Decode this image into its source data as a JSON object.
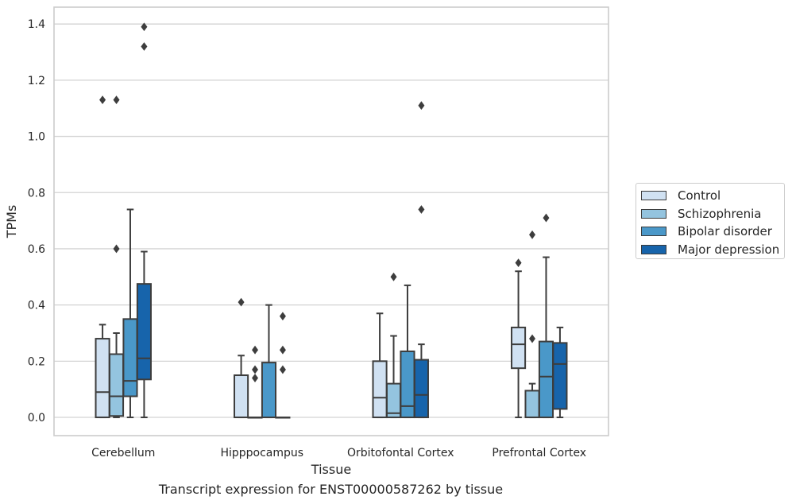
{
  "caption": "Transcript expression for ENST00000587262 by tissue",
  "legend": {
    "items": [
      {
        "label": "Control",
        "color": "#d0e1f2"
      },
      {
        "label": "Schizophrenia",
        "color": "#94c4df"
      },
      {
        "label": "Bipolar disorder",
        "color": "#4a98c9"
      },
      {
        "label": "Major depression",
        "color": "#1764ab"
      }
    ]
  },
  "chart_data": {
    "type": "box",
    "xlabel": "Tissue",
    "ylabel": "TPMs",
    "ylim": [
      -0.065,
      1.46
    ],
    "yticks": [
      "0.0",
      "0.2",
      "0.4",
      "0.6",
      "0.8",
      "1.0",
      "1.2",
      "1.4"
    ],
    "grid": "horizontal",
    "legend_position": "right",
    "categories": [
      "Cerebellum",
      "Hipppocampus",
      "Orbitofontal Cortex",
      "Prefrontal Cortex"
    ],
    "series": [
      {
        "name": "Control",
        "color": "#d0e1f2",
        "boxes": [
          {
            "min": 0.0,
            "q1": 0.0,
            "median": 0.09,
            "q3": 0.28,
            "max": 0.33,
            "outliers": [
              1.13
            ]
          },
          {
            "min": 0.0,
            "q1": 0.0,
            "median": 0.0,
            "q3": 0.15,
            "max": 0.22,
            "outliers": [
              0.41
            ]
          },
          {
            "min": 0.0,
            "q1": 0.0,
            "median": 0.07,
            "q3": 0.2,
            "max": 0.37,
            "outliers": []
          },
          {
            "min": 0.0,
            "q1": 0.175,
            "median": 0.26,
            "q3": 0.32,
            "max": 0.52,
            "outliers": [
              0.55
            ]
          }
        ]
      },
      {
        "name": "Schizophrenia",
        "color": "#94c4df",
        "boxes": [
          {
            "min": 0.0,
            "q1": 0.005,
            "median": 0.075,
            "q3": 0.225,
            "max": 0.3,
            "outliers": [
              1.13,
              0.6
            ]
          },
          {
            "min": 0.0,
            "q1": 0.0,
            "median": 0.0,
            "q3": 0.0,
            "max": 0.0,
            "outliers": [
              0.24,
              0.17,
              0.14
            ]
          },
          {
            "min": 0.0,
            "q1": 0.0,
            "median": 0.015,
            "q3": 0.12,
            "max": 0.29,
            "outliers": [
              0.5
            ]
          },
          {
            "min": 0.0,
            "q1": 0.0,
            "median": 0.0,
            "q3": 0.095,
            "max": 0.12,
            "outliers": [
              0.65,
              0.28
            ]
          }
        ]
      },
      {
        "name": "Bipolar disorder",
        "color": "#4a98c9",
        "boxes": [
          {
            "min": 0.0,
            "q1": 0.075,
            "median": 0.13,
            "q3": 0.35,
            "max": 0.74,
            "outliers": []
          },
          {
            "min": 0.0,
            "q1": 0.0,
            "median": 0.0,
            "q3": 0.195,
            "max": 0.4,
            "outliers": []
          },
          {
            "min": 0.0,
            "q1": 0.0,
            "median": 0.04,
            "q3": 0.235,
            "max": 0.47,
            "outliers": []
          },
          {
            "min": 0.0,
            "q1": 0.0,
            "median": 0.145,
            "q3": 0.27,
            "max": 0.57,
            "outliers": [
              0.71
            ]
          }
        ]
      },
      {
        "name": "Major depression",
        "color": "#1764ab",
        "boxes": [
          {
            "min": 0.0,
            "q1": 0.135,
            "median": 0.21,
            "q3": 0.475,
            "max": 0.59,
            "outliers": [
              1.39,
              1.32
            ]
          },
          {
            "min": 0.0,
            "q1": 0.0,
            "median": 0.0,
            "q3": 0.0,
            "max": 0.0,
            "outliers": [
              0.36,
              0.24,
              0.17
            ]
          },
          {
            "min": 0.0,
            "q1": 0.0,
            "median": 0.08,
            "q3": 0.205,
            "max": 0.26,
            "outliers": [
              1.11,
              0.74
            ]
          },
          {
            "min": 0.0,
            "q1": 0.03,
            "median": 0.19,
            "q3": 0.265,
            "max": 0.32,
            "outliers": []
          }
        ]
      }
    ]
  }
}
